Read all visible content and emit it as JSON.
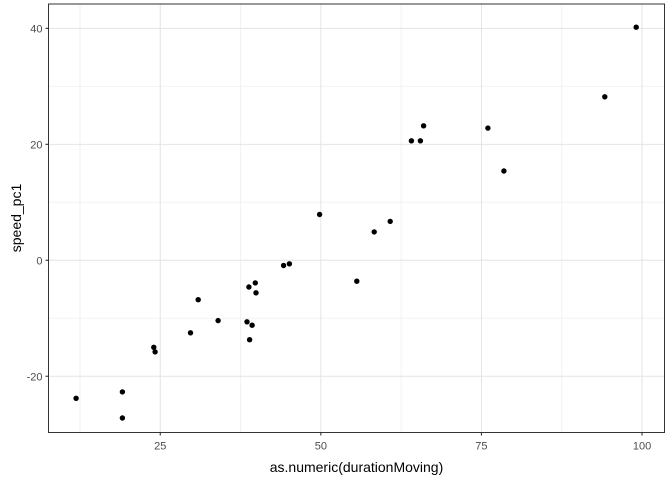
{
  "chart_data": {
    "type": "scatter",
    "title": "",
    "xlabel": "as.numeric(durationMoving)",
    "ylabel": "speed_pc1",
    "xlim": [
      7.6,
      103.5
    ],
    "ylim": [
      -29.7,
      44.2
    ],
    "x_major_ticks": [
      25,
      50,
      75,
      100
    ],
    "x_minor_ticks": [
      12.5,
      37.5,
      62.5,
      87.5
    ],
    "y_major_ticks": [
      -20,
      0,
      20,
      40
    ],
    "y_minor_ticks": [
      -10,
      10,
      30
    ],
    "x_tick_labels": [
      "25",
      "50",
      "75",
      "100"
    ],
    "y_tick_labels": [
      "-20",
      "0",
      "20",
      "40"
    ],
    "grid": true,
    "legend": "none",
    "points": [
      [
        11.9,
        -23.8
      ],
      [
        19.1,
        -22.7
      ],
      [
        19.1,
        -27.2
      ],
      [
        24.0,
        -15.0
      ],
      [
        24.2,
        -15.8
      ],
      [
        29.7,
        -12.5
      ],
      [
        30.9,
        -6.8
      ],
      [
        34.0,
        -10.4
      ],
      [
        38.5,
        -10.6
      ],
      [
        39.3,
        -11.2
      ],
      [
        38.9,
        -13.7
      ],
      [
        38.8,
        -4.6
      ],
      [
        39.8,
        -3.9
      ],
      [
        39.9,
        -5.6
      ],
      [
        44.2,
        -0.9
      ],
      [
        45.1,
        -0.6
      ],
      [
        49.8,
        7.9
      ],
      [
        55.6,
        -3.6
      ],
      [
        58.3,
        4.9
      ],
      [
        60.8,
        6.7
      ],
      [
        64.1,
        20.6
      ],
      [
        65.5,
        20.6
      ],
      [
        66.0,
        23.2
      ],
      [
        76.0,
        22.8
      ],
      [
        78.5,
        15.4
      ],
      [
        94.2,
        28.2
      ],
      [
        99.1,
        40.2
      ]
    ]
  },
  "style": {
    "background": "#ffffff",
    "point_color": "#000000",
    "major_grid_color": "#e4e4e4",
    "minor_grid_color": "#f2f2f2",
    "panel_border_color": "#333333",
    "tick_color": "#333333",
    "tick_label_color": "#4d4d4d",
    "axis_title_color": "#000000"
  }
}
